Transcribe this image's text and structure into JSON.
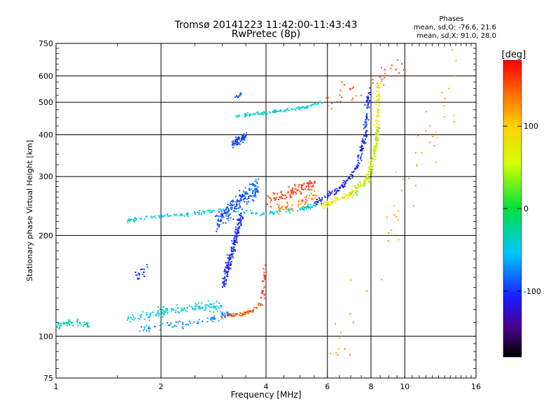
{
  "chart_data": {
    "type": "scatter",
    "title": "Tromsø 20141223 11:42:00-11:43:43",
    "subtitle": "RwPretec (8p)",
    "stats": {
      "heading": "Phases",
      "line1": "mean, sd,O: -76.6, 21.6",
      "line2": "mean, sd,X:  91.0, 28.0"
    },
    "xlabel": "Frequency [MHz]",
    "ylabel": "Stationary phase Virtual Height [km]",
    "x_scale": "log",
    "y_scale": "log",
    "xlim": [
      1,
      16
    ],
    "ylim": [
      75,
      750
    ],
    "x_ticks": [
      1,
      2,
      4,
      6,
      8,
      10,
      16
    ],
    "x_tick_labels": [
      "1",
      "2",
      "4",
      "6",
      "8",
      "10",
      "16"
    ],
    "y_ticks": [
      75,
      100,
      200,
      300,
      400,
      500,
      600,
      750
    ],
    "y_tick_labels": [
      "75",
      "100",
      "200",
      "300",
      "400",
      "500",
      "600",
      "750"
    ],
    "grid": true,
    "colorbar": {
      "label": "[deg]",
      "range": [
        -180,
        180
      ],
      "ticks": [
        100,
        0,
        -100
      ],
      "tick_labels": [
        "100",
        "0",
        "-100"
      ]
    },
    "traces": [
      {
        "name_desc": "E trace",
        "phase": -30,
        "x": [
          1.0,
          1.1,
          1.25
        ],
        "y": [
          107,
          110,
          108
        ],
        "spread_y": 0.03,
        "n": 60
      },
      {
        "name_desc": "Es low",
        "phase": -45,
        "x": [
          1.6,
          2.0,
          2.5,
          3.0
        ],
        "y": [
          112,
          118,
          122,
          123
        ],
        "spread_y": 0.05,
        "n": 140
      },
      {
        "name_desc": "Es upper",
        "phase": -70,
        "x": [
          1.7,
          2.2,
          2.8,
          3.2
        ],
        "y": [
          105,
          108,
          112,
          118
        ],
        "spread_y": 0.04,
        "n": 80
      },
      {
        "name_desc": "Es cusp blue",
        "phase": -105,
        "x": [
          3.0,
          3.2,
          3.4
        ],
        "y": [
          140,
          180,
          230
        ],
        "spread_y": 0.08,
        "n": 180
      },
      {
        "name_desc": "Es cusp red",
        "phase": 150,
        "x": [
          3.0,
          3.5,
          3.9
        ],
        "y": [
          114,
          117,
          125
        ],
        "spread_y": 0.025,
        "n": 60
      },
      {
        "name_desc": "Es cusp red tail",
        "phase": 160,
        "x": [
          3.9,
          3.95,
          4.0
        ],
        "y": [
          130,
          150,
          165
        ],
        "spread_y": 0.04,
        "n": 25
      },
      {
        "name_desc": "isolated low blue",
        "phase": -100,
        "x": [
          1.7,
          1.85
        ],
        "y": [
          150,
          160
        ],
        "spread_y": 0.05,
        "n": 20
      },
      {
        "name_desc": "F trace",
        "phase": -45,
        "x": [
          1.6,
          2.0,
          2.5,
          3.0,
          4.0,
          5.0,
          5.6
        ],
        "y": [
          222,
          228,
          233,
          238,
          232,
          240,
          248
        ],
        "spread_y": 0.02,
        "n": 170
      },
      {
        "name_desc": "F blob",
        "phase": -90,
        "x": [
          2.9,
          3.3,
          3.8
        ],
        "y": [
          220,
          250,
          280
        ],
        "spread_y": 0.09,
        "n": 200
      },
      {
        "name_desc": "F red",
        "phase": 160,
        "x": [
          4.0,
          4.8,
          5.5
        ],
        "y": [
          255,
          270,
          285
        ],
        "spread_y": 0.06,
        "n": 90
      },
      {
        "name_desc": "F orange",
        "phase": 130,
        "x": [
          4.3,
          5.0,
          5.6
        ],
        "y": [
          240,
          250,
          262
        ],
        "spread_y": 0.05,
        "n": 60
      },
      {
        "name_desc": "upper trace",
        "phase": -40,
        "x": [
          3.3,
          4.0,
          5.0,
          5.8
        ],
        "y": [
          455,
          465,
          480,
          500
        ],
        "spread_y": 0.015,
        "n": 110
      },
      {
        "name_desc": "upper blob",
        "phase": -95,
        "x": [
          3.2,
          3.35,
          3.5
        ],
        "y": [
          375,
          385,
          395
        ],
        "spread_y": 0.04,
        "n": 70
      },
      {
        "name_desc": "isolated top blue",
        "phase": -90,
        "x": [
          3.3,
          3.4
        ],
        "y": [
          520,
          530
        ],
        "spread_y": 0.02,
        "n": 10
      },
      {
        "name_desc": "F2 O trace",
        "phase": -105,
        "x": [
          5.5,
          6.5,
          7.3,
          7.7,
          7.9
        ],
        "y": [
          250,
          275,
          320,
          400,
          550
        ],
        "spread_y": 0.03,
        "n": 190
      },
      {
        "name_desc": "F2 X trace",
        "phase": 80,
        "x": [
          5.8,
          6.8,
          7.8,
          8.3,
          8.4
        ],
        "y": [
          245,
          262,
          295,
          380,
          580
        ],
        "spread_y": 0.03,
        "n": 240
      },
      {
        "name_desc": "F2 X cyan",
        "phase": 30,
        "x": [
          7.0,
          8.0,
          8.4
        ],
        "y": [
          260,
          300,
          420
        ],
        "spread_y": 0.05,
        "n": 50
      },
      {
        "name_desc": "top scatter",
        "phase": 150,
        "x": [
          6.0,
          10.0
        ],
        "y": [
          500,
          650
        ],
        "spread_y": 0.12,
        "n": 40
      },
      {
        "name_desc": "right scatter",
        "phase": 120,
        "x": [
          6.0,
          14.0
        ],
        "y": [
          80,
          600
        ],
        "spread_y": 0.35,
        "n": 55
      }
    ]
  }
}
